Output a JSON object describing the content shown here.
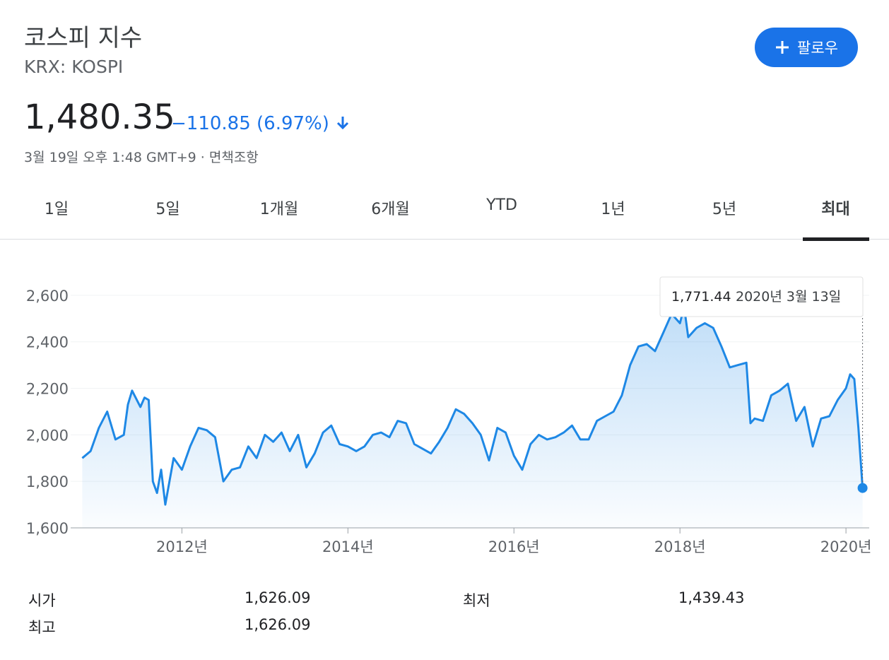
{
  "header": {
    "title": "코스피 지수",
    "ticker": "KRX: KOSPI",
    "price": "1,480.35",
    "change": "−110.85 (6.97%)",
    "timestamp": "3월 19일 오후 1:48 GMT+9 · 면책조항",
    "follow": "팔로우"
  },
  "tabs": [
    "1일",
    "5일",
    "1개월",
    "6개월",
    "YTD",
    "1년",
    "5년",
    "최대"
  ],
  "chart_data": {
    "type": "line",
    "color": "#1e88e5",
    "grid": true,
    "x": [
      2010.8,
      2010.9,
      2011.0,
      2011.1,
      2011.2,
      2011.3,
      2011.35,
      2011.4,
      2011.5,
      2011.55,
      2011.6,
      2011.65,
      2011.7,
      2011.75,
      2011.8,
      2011.9,
      2012.0,
      2012.1,
      2012.2,
      2012.3,
      2012.4,
      2012.5,
      2012.6,
      2012.7,
      2012.8,
      2012.9,
      2013.0,
      2013.1,
      2013.2,
      2013.3,
      2013.4,
      2013.5,
      2013.6,
      2013.7,
      2013.8,
      2013.9,
      2014.0,
      2014.1,
      2014.2,
      2014.3,
      2014.4,
      2014.5,
      2014.6,
      2014.7,
      2014.8,
      2014.9,
      2015.0,
      2015.1,
      2015.2,
      2015.3,
      2015.4,
      2015.5,
      2015.6,
      2015.7,
      2015.8,
      2015.9,
      2016.0,
      2016.1,
      2016.2,
      2016.3,
      2016.4,
      2016.5,
      2016.6,
      2016.7,
      2016.8,
      2016.9,
      2017.0,
      2017.1,
      2017.2,
      2017.3,
      2017.4,
      2017.5,
      2017.6,
      2017.7,
      2017.8,
      2017.9,
      2018.0,
      2018.05,
      2018.1,
      2018.2,
      2018.3,
      2018.4,
      2018.5,
      2018.6,
      2018.7,
      2018.8,
      2018.85,
      2018.9,
      2019.0,
      2019.1,
      2019.2,
      2019.3,
      2019.4,
      2019.5,
      2019.6,
      2019.7,
      2019.8,
      2019.9,
      2020.0,
      2020.05,
      2020.1,
      2020.15,
      2020.2
    ],
    "series": [
      {
        "values": [
          1900,
          1930,
          2030,
          2100,
          1980,
          2000,
          2130,
          2190,
          2120,
          2160,
          2150,
          1800,
          1750,
          1850,
          1700,
          1900,
          1850,
          1950,
          2030,
          2020,
          1990,
          1800,
          1850,
          1860,
          1950,
          1900,
          2000,
          1970,
          2010,
          1930,
          2000,
          1860,
          1920,
          2010,
          2040,
          1960,
          1950,
          1930,
          1950,
          2000,
          2010,
          1990,
          2060,
          2050,
          1960,
          1940,
          1920,
          1970,
          2030,
          2110,
          2090,
          2050,
          2000,
          1890,
          2030,
          2010,
          1910,
          1850,
          1960,
          2000,
          1980,
          1990,
          2010,
          2040,
          1980,
          1980,
          2060,
          2080,
          2100,
          2170,
          2300,
          2380,
          2390,
          2360,
          2440,
          2520,
          2480,
          2550,
          2420,
          2460,
          2480,
          2460,
          2380,
          2290,
          2300,
          2310,
          2050,
          2070,
          2060,
          2170,
          2190,
          2220,
          2060,
          2120,
          1950,
          2070,
          2080,
          2150,
          2200,
          2260,
          2240,
          2030,
          1771.44
        ]
      }
    ],
    "xlim": [
      2010.66,
      2020.28
    ],
    "ylim": [
      1600,
      2700
    ],
    "xticks": [
      {
        "value": 2012,
        "label": "2012년"
      },
      {
        "value": 2014,
        "label": "2014년"
      },
      {
        "value": 2016,
        "label": "2016년"
      },
      {
        "value": 2018,
        "label": "2018년"
      },
      {
        "value": 2020,
        "label": "2020년"
      }
    ],
    "yticks": [
      {
        "value": 1600,
        "label": "1,600"
      },
      {
        "value": 1800,
        "label": "1,800"
      },
      {
        "value": 2000,
        "label": "2,000"
      },
      {
        "value": 2200,
        "label": "2,200"
      },
      {
        "value": 2400,
        "label": "2,400"
      },
      {
        "value": 2600,
        "label": "2,600"
      }
    ],
    "tooltip": {
      "x": 2020.2,
      "value": 1771.44,
      "label": "1,771.44",
      "date": "2020년 3월 13일"
    }
  },
  "stats": [
    [
      "시가",
      "1,626.09"
    ],
    [
      "최고",
      "1,626.09"
    ],
    [
      "최저",
      "1,439.43"
    ]
  ]
}
